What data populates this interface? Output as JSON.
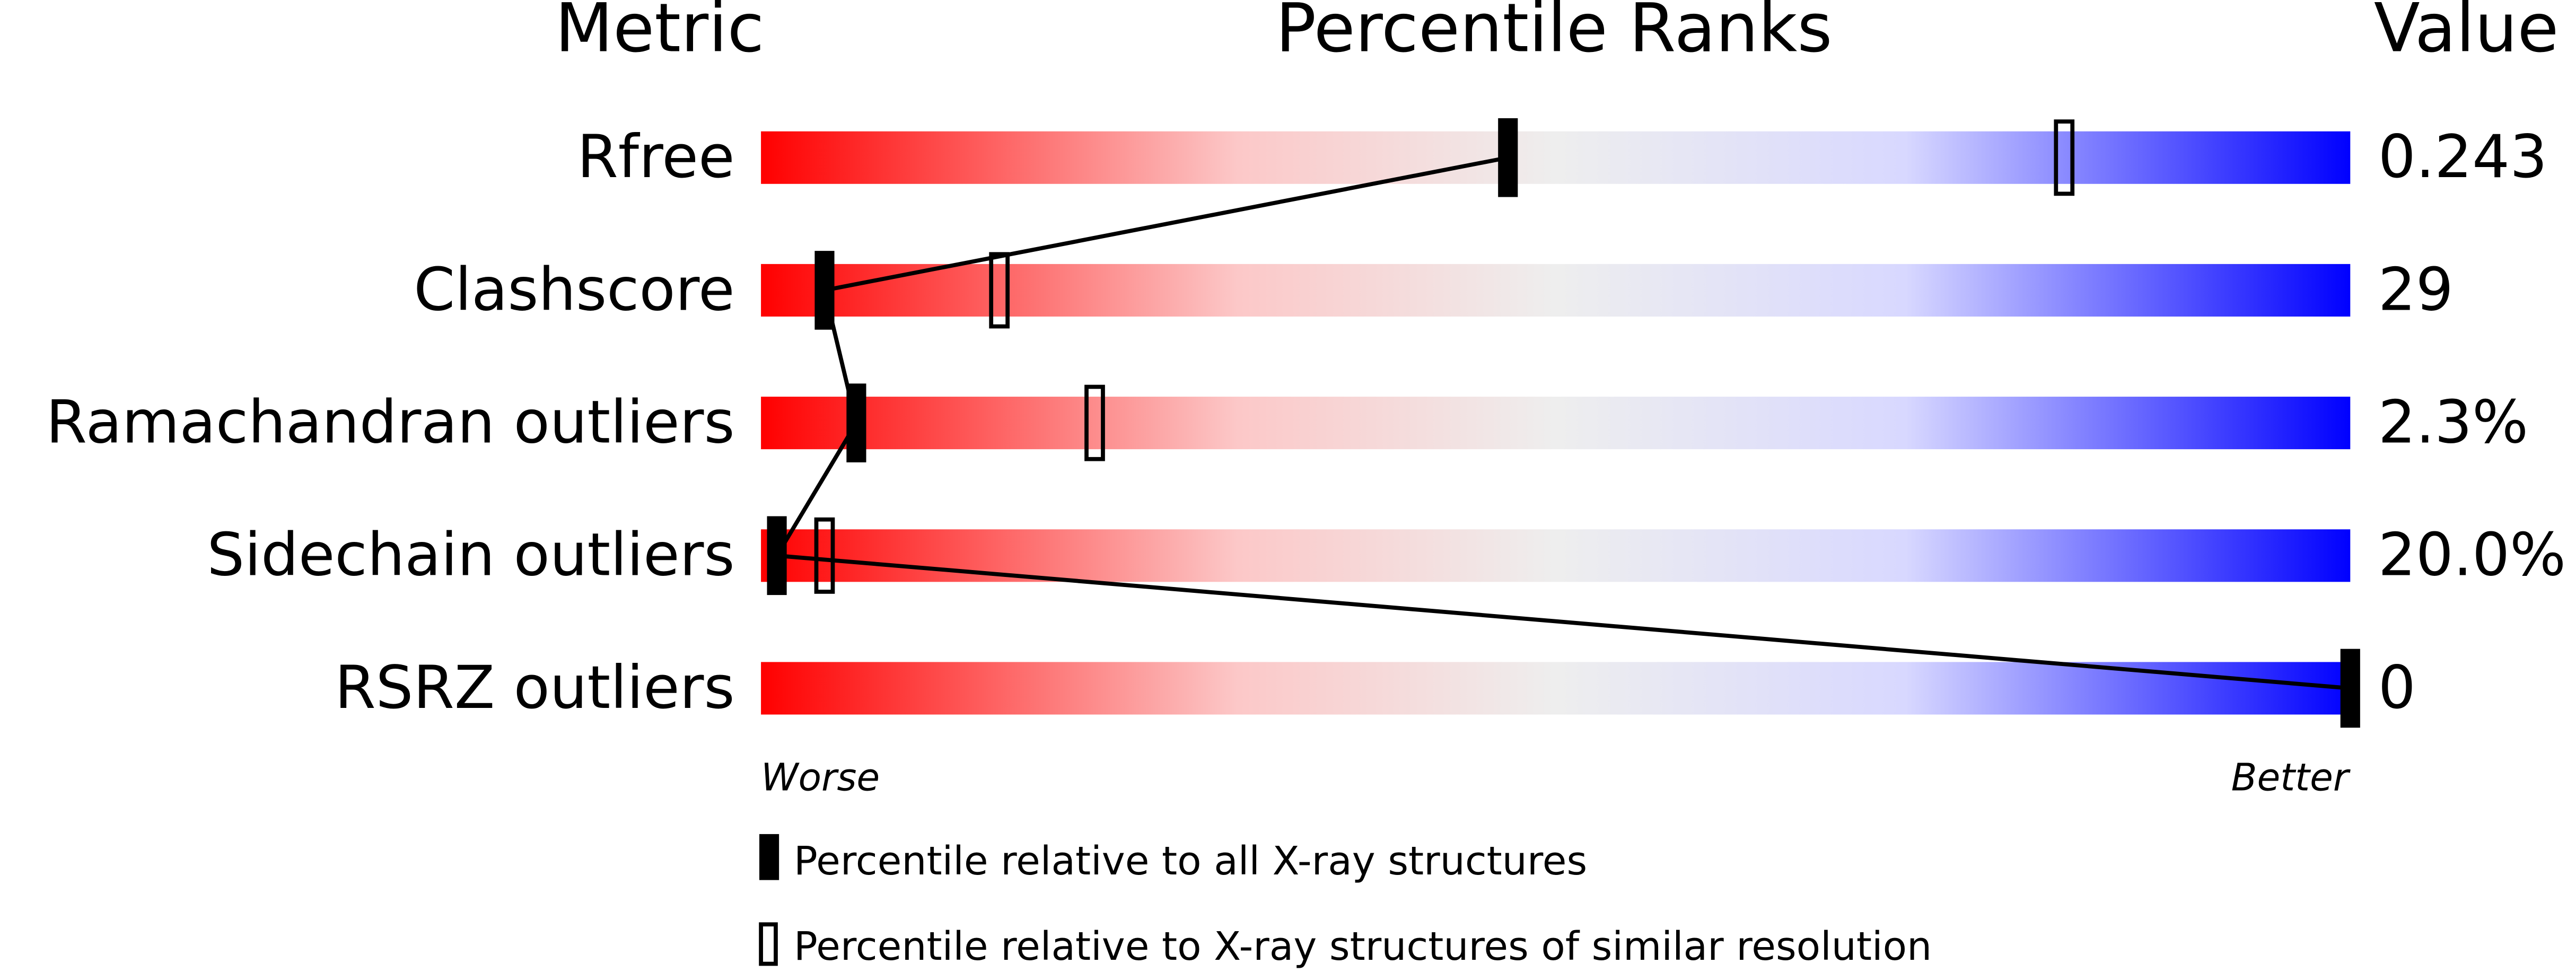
{
  "chart_data": {
    "type": "percentile",
    "headers": {
      "metric": "Metric",
      "ranks": "Percentile Ranks",
      "value": "Value"
    },
    "categories": [
      "Rfree",
      "Clashscore",
      "Ramachandran outliers",
      "Sidechain outliers",
      "RSRZ outliers"
    ],
    "metric_values": [
      "0.243",
      "29",
      "2.3%",
      "20.0%",
      "0"
    ],
    "series": [
      {
        "name": "Percentile relative to all X-ray structures",
        "color": "#000000",
        "style": "filled",
        "values": [
          47,
          4,
          6,
          1,
          100
        ]
      },
      {
        "name": "Percentile relative to X-ray structures of similar resolution",
        "color": "#000000",
        "style": "open",
        "values": [
          82,
          15,
          21,
          4,
          null
        ]
      }
    ],
    "xlim": [
      0,
      100
    ],
    "axis_labels": {
      "low": "Worse",
      "high": "Better"
    }
  }
}
